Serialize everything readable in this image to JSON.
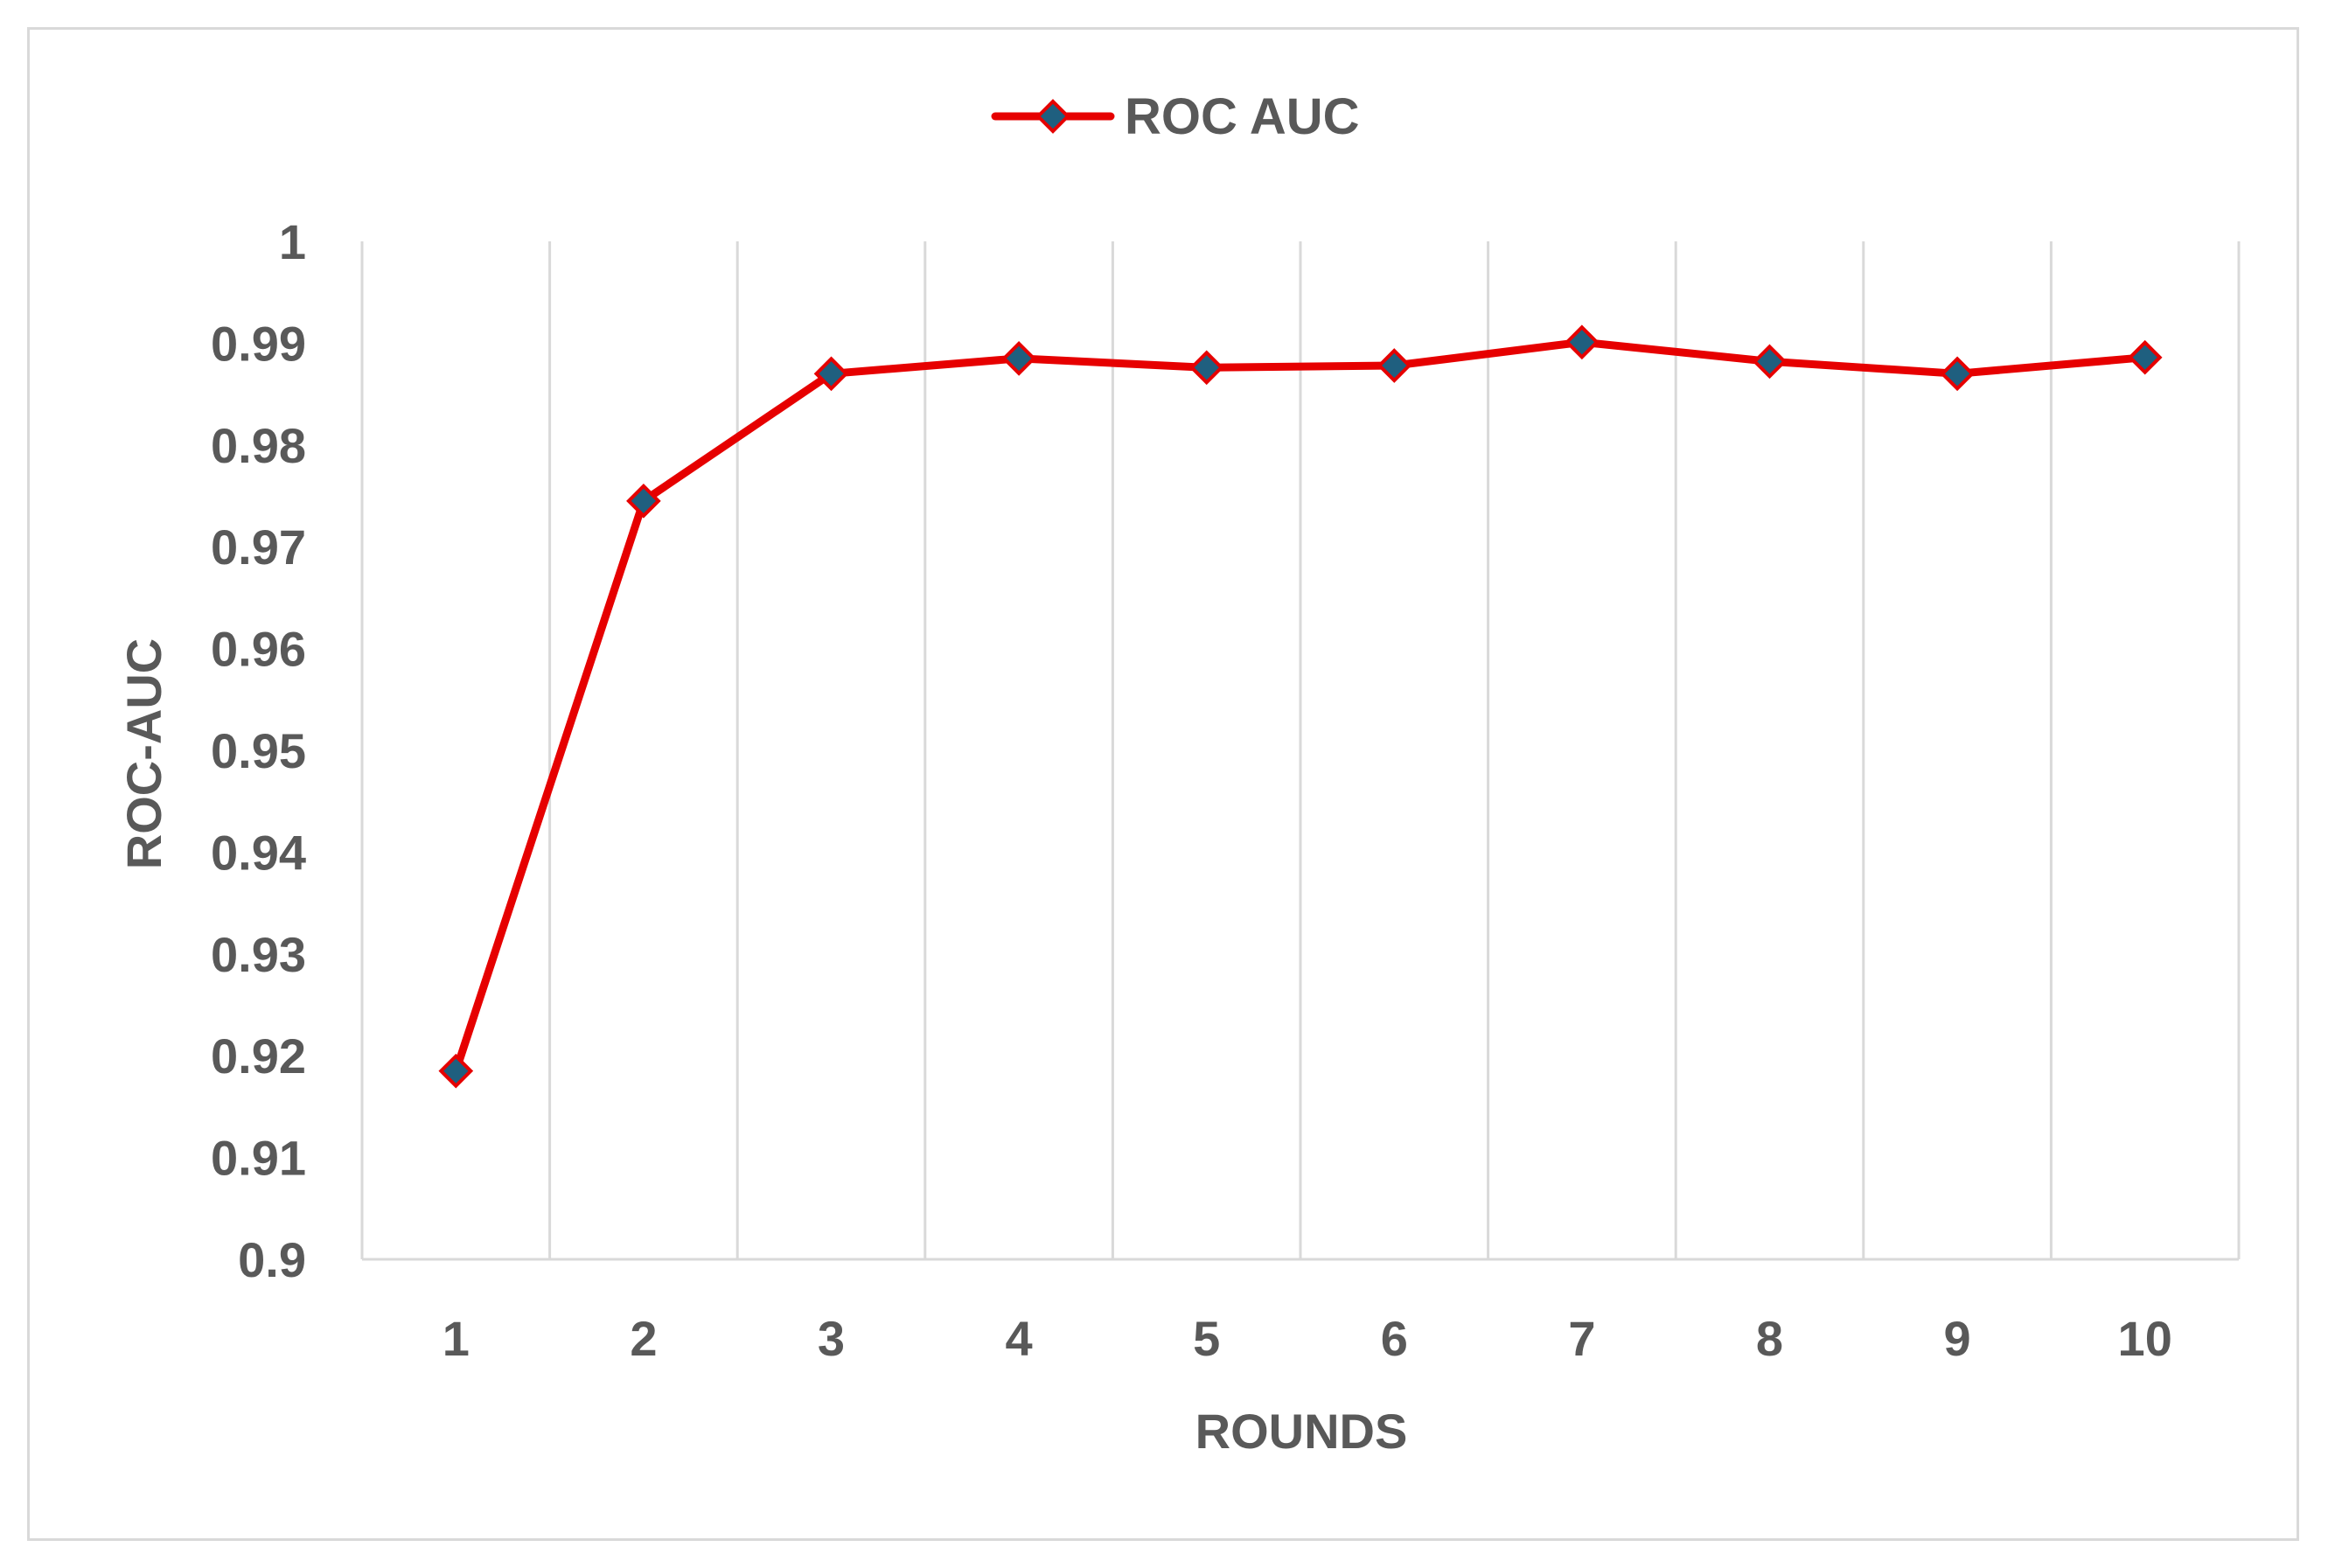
{
  "chart_data": {
    "type": "line",
    "categories": [
      "1",
      "2",
      "3",
      "4",
      "5",
      "6",
      "7",
      "8",
      "9",
      "10"
    ],
    "series": [
      {
        "name": "ROC AUC",
        "values": [
          0.9185,
          0.9745,
          0.987,
          0.9885,
          0.9876,
          0.9878,
          0.9901,
          0.9882,
          0.987,
          0.9886
        ]
      }
    ],
    "title": "",
    "xlabel": "ROUNDS",
    "ylabel": "ROC-AUC",
    "ylim": [
      0.9,
      1.0
    ],
    "yticks": [
      "0.9",
      "0.91",
      "0.92",
      "0.93",
      "0.94",
      "0.95",
      "0.96",
      "0.97",
      "0.98",
      "0.99",
      "1"
    ],
    "grid": "vertical",
    "legend_position": "top-center",
    "colors": {
      "line": "#e60000",
      "marker_fill": "#1f5f7f",
      "marker_edge": "#e60000",
      "gridline": "#d9d9d9",
      "text": "#595959"
    }
  }
}
